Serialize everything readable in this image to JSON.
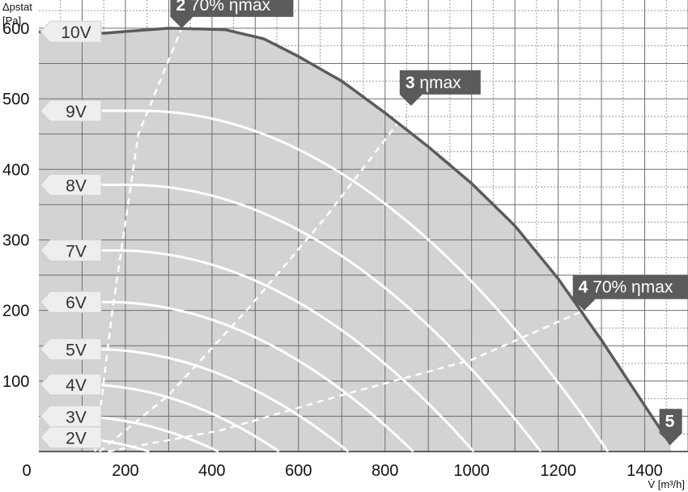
{
  "chart_data": {
    "type": "line",
    "xlabel": "V̇ [m³/h]",
    "ylabel_line1": "Δpstat",
    "ylabel_line2": "[Pa]",
    "xlim": [
      0,
      1500
    ],
    "ylim": [
      0,
      640
    ],
    "x_ticks": [
      0,
      200,
      400,
      600,
      800,
      1000,
      1200,
      1400
    ],
    "y_ticks": [
      100,
      200,
      300,
      400,
      500,
      600
    ],
    "grid": true,
    "minor_grid": true,
    "colors": {
      "envelope_fill": "#d3d3d3",
      "max_curve": "#5b5b5b",
      "voltage_curves": "#ffffff",
      "efficiency_lines": "#ffffff",
      "markers": "#5b5b5b",
      "voltage_tags": "#eeeeee"
    },
    "max_curve": {
      "name": "10V",
      "x": [
        0,
        150,
        300,
        430,
        520,
        600,
        700,
        800,
        900,
        1000,
        1100,
        1200,
        1300,
        1400,
        1460
      ],
      "y": [
        595,
        593,
        600,
        598,
        585,
        560,
        525,
        480,
        432,
        380,
        320,
        245,
        158,
        65,
        10
      ]
    },
    "voltage_curves": [
      {
        "name": "9V",
        "p0": 483,
        "vmax": 1315
      },
      {
        "name": "8V",
        "p0": 378,
        "vmax": 1160
      },
      {
        "name": "7V",
        "p0": 285,
        "vmax": 1005
      },
      {
        "name": "6V",
        "p0": 212,
        "vmax": 865
      },
      {
        "name": "5V",
        "p0": 145,
        "vmax": 715
      },
      {
        "name": "4V",
        "p0": 95,
        "vmax": 555
      },
      {
        "name": "3V",
        "p0": 50,
        "vmax": 415
      },
      {
        "name": "2V",
        "p0": 20,
        "vmax": 255
      }
    ],
    "efficiency_lines": [
      {
        "x": [
          130,
          170,
          230,
          330
        ],
        "y": [
          0,
          200,
          450,
          600
        ]
      },
      {
        "x": [
          140,
          300,
          480,
          660,
          860
        ],
        "y": [
          0,
          80,
          200,
          330,
          490
        ]
      },
      {
        "x": [
          160,
          420,
          700,
          1000,
          1260
        ],
        "y": [
          0,
          30,
          80,
          130,
          200
        ]
      }
    ],
    "operating_points": [
      {
        "number": "2",
        "label": "70% ηmax",
        "x": 330,
        "y": 600
      },
      {
        "number": "3",
        "label": "ηmax",
        "x": 860,
        "y": 490
      },
      {
        "number": "4",
        "label": "70% ηmax",
        "x": 1260,
        "y": 200
      },
      {
        "number": "5",
        "label": "",
        "x": 1460,
        "y": 10
      }
    ]
  }
}
